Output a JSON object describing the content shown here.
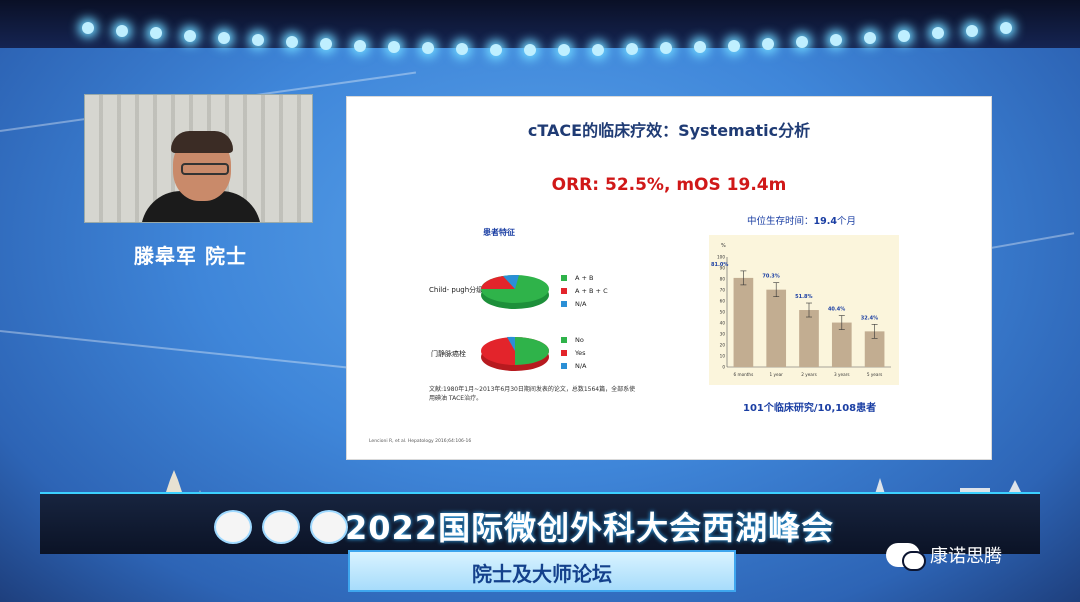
{
  "speaker": {
    "name": "滕皋军  院士"
  },
  "slide": {
    "title": "cTACE的临床疗效：Systematic分析",
    "subtitle": "ORR: 52.5%, mOS 19.4m",
    "characteristics": {
      "title": "患者特征",
      "pie1_label": "Child- pugh分级",
      "pie1_legend": [
        "A + B",
        "A + B + C",
        "N/A"
      ],
      "pie2_label": "门静脉癌栓",
      "pie2_legend": [
        "No",
        "Yes",
        "N/A"
      ],
      "note": "文献:1980年1月~2013年6月30日期间发表的论文，总数1564篇，全部系使用碘油 TACE治疗。",
      "citation": "Lencioni R, et al. Hepatology 2016;64:106-16"
    },
    "survival": {
      "title_prefix": "中位生存时间：",
      "title_value": "19.4",
      "title_suffix": "个月",
      "footer": "101个临床研究/10,108患者"
    }
  },
  "chart_data": {
    "type": "bar",
    "categories": [
      "6 months",
      "1 year",
      "2 years",
      "3 years",
      "5 years"
    ],
    "values": [
      81.0,
      70.3,
      51.8,
      40.4,
      32.4
    ],
    "data_labels": [
      "81.0%",
      "70.3%",
      "51.8%",
      "40.4%",
      "32.4%"
    ],
    "ylabel": "%",
    "ylim": [
      0,
      100
    ],
    "yticks": [
      0,
      10,
      20,
      30,
      40,
      50,
      60,
      70,
      80,
      90,
      100
    ],
    "error_bars": true,
    "bar_color": "#c2ad91",
    "grid": false
  },
  "banner": {
    "title": "2022国际微创外科大会西湖峰会",
    "forum": "院士及大师论坛"
  },
  "watermark": {
    "text": "康诺思腾"
  }
}
